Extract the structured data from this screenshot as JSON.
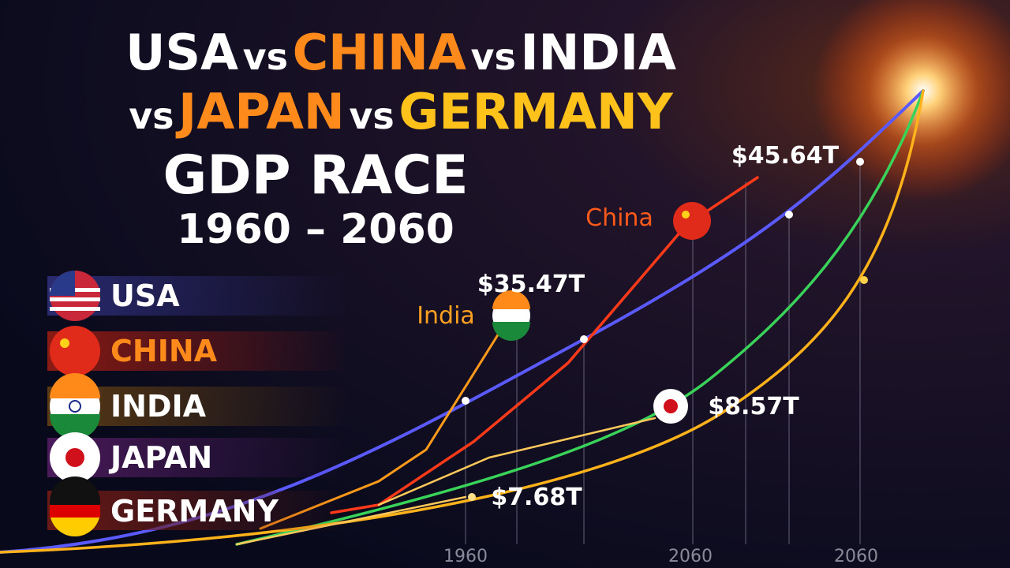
{
  "title": {
    "line1": [
      "USA",
      "vs",
      "CHINA",
      "vs",
      "INDIA"
    ],
    "line2": [
      "vs",
      "JAPAN",
      "vs",
      "GERMANY"
    ],
    "subtitle": "GDP RACE",
    "period": "1960 – 2060"
  },
  "legend": [
    "USA",
    "CHINA",
    "INDIA",
    "JAPAN",
    "GERMANY"
  ],
  "callouts": [
    "China",
    "India"
  ],
  "annotations": [
    "$45.64T",
    "$35.47T",
    "$8.57T",
    "$7.68T"
  ],
  "axis_labels": [
    "1960",
    "2060",
    "2060"
  ]
}
